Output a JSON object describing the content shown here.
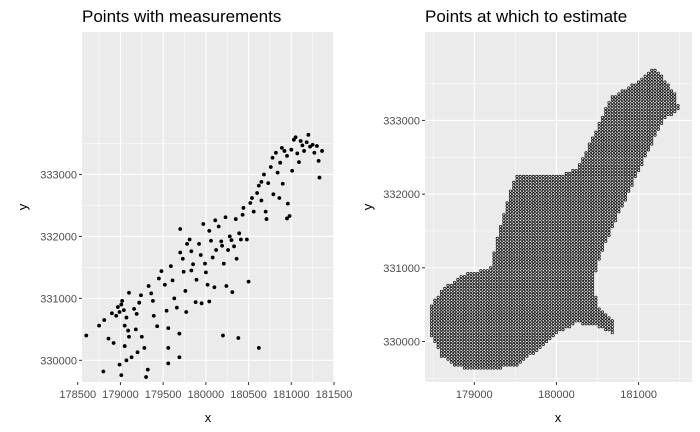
{
  "background": "#ffffff",
  "panel_color": "#ebebeb",
  "grid_color": "#ffffff",
  "point_color": "#000000",
  "chart_data": [
    {
      "type": "scatter",
      "title": "Points with measurements",
      "xlabel": "x",
      "ylabel": "y",
      "xlim": [
        178550,
        181500
      ],
      "ylim": [
        329650,
        335300
      ],
      "xticks": [
        178500,
        179000,
        179500,
        180000,
        180500,
        181000,
        181500
      ],
      "xtick_labels": [
        "178500",
        "179000",
        "179500",
        "180000",
        "180500",
        "181000",
        "181500"
      ],
      "yticks": [
        330000,
        331000,
        332000,
        333000
      ],
      "ytick_labels": [
        "330000",
        "331000",
        "332000",
        "333000"
      ],
      "grid": true,
      "legend": "none",
      "points": [
        [
          178600,
          330400
        ],
        [
          178750,
          330560
        ],
        [
          178810,
          330650
        ],
        [
          178860,
          330350
        ],
        [
          178800,
          329820
        ],
        [
          178900,
          330760
        ],
        [
          178920,
          330280
        ],
        [
          178950,
          330720
        ],
        [
          178970,
          330860
        ],
        [
          178990,
          330780
        ],
        [
          179010,
          330900
        ],
        [
          179020,
          330960
        ],
        [
          179040,
          330810
        ],
        [
          179050,
          330560
        ],
        [
          179070,
          330690
        ],
        [
          179090,
          330480
        ],
        [
          179100,
          330380
        ],
        [
          179050,
          330230
        ],
        [
          178990,
          329930
        ],
        [
          179010,
          329760
        ],
        [
          179070,
          330000
        ],
        [
          179130,
          330050
        ],
        [
          179160,
          330830
        ],
        [
          179190,
          330750
        ],
        [
          179180,
          330500
        ],
        [
          179200,
          330130
        ],
        [
          179220,
          330930
        ],
        [
          179240,
          331050
        ],
        [
          179250,
          330380
        ],
        [
          179280,
          330200
        ],
        [
          179300,
          329730
        ],
        [
          179320,
          329850
        ],
        [
          179330,
          331200
        ],
        [
          179360,
          331080
        ],
        [
          179380,
          330960
        ],
        [
          179390,
          330720
        ],
        [
          179430,
          330550
        ],
        [
          179450,
          331320
        ],
        [
          179480,
          331440
        ],
        [
          179520,
          331220
        ],
        [
          179540,
          330800
        ],
        [
          179560,
          330520
        ],
        [
          179560,
          330200
        ],
        [
          179560,
          329950
        ],
        [
          179590,
          331520
        ],
        [
          179610,
          331290
        ],
        [
          179630,
          331000
        ],
        [
          179660,
          330850
        ],
        [
          179690,
          330430
        ],
        [
          179690,
          330050
        ],
        [
          179700,
          331740
        ],
        [
          179730,
          331640
        ],
        [
          179740,
          331430
        ],
        [
          179760,
          331120
        ],
        [
          179770,
          330780
        ],
        [
          179780,
          331880
        ],
        [
          179810,
          331950
        ],
        [
          179830,
          331760
        ],
        [
          179850,
          331550
        ],
        [
          179880,
          330940
        ],
        [
          179890,
          331300
        ],
        [
          179920,
          331880
        ],
        [
          179940,
          331700
        ],
        [
          179950,
          330920
        ],
        [
          179970,
          332200
        ],
        [
          179990,
          331560
        ],
        [
          180000,
          331420
        ],
        [
          180020,
          331220
        ],
        [
          180040,
          332090
        ],
        [
          180040,
          330950
        ],
        [
          180060,
          331930
        ],
        [
          180080,
          331660
        ],
        [
          180100,
          331180
        ],
        [
          180110,
          332260
        ],
        [
          180120,
          331780
        ],
        [
          180150,
          332160
        ],
        [
          180180,
          331920
        ],
        [
          180190,
          331850
        ],
        [
          180210,
          331560
        ],
        [
          180240,
          331200
        ],
        [
          180230,
          332310
        ],
        [
          180260,
          331780
        ],
        [
          180280,
          332000
        ],
        [
          180300,
          331940
        ],
        [
          180310,
          331100
        ],
        [
          180330,
          331840
        ],
        [
          180350,
          332280
        ],
        [
          180360,
          331640
        ],
        [
          180390,
          332050
        ],
        [
          180410,
          331950
        ],
        [
          180430,
          332350
        ],
        [
          180440,
          332460
        ],
        [
          180480,
          331950
        ],
        [
          180520,
          332540
        ],
        [
          180540,
          332620
        ],
        [
          180560,
          332400
        ],
        [
          180600,
          332700
        ],
        [
          180620,
          332820
        ],
        [
          180650,
          332580
        ],
        [
          180650,
          332880
        ],
        [
          180680,
          333000
        ],
        [
          180700,
          332400
        ],
        [
          180710,
          332280
        ],
        [
          180730,
          332860
        ],
        [
          180760,
          333120
        ],
        [
          180780,
          333270
        ],
        [
          180790,
          332680
        ],
        [
          180820,
          333350
        ],
        [
          180840,
          333030
        ],
        [
          180860,
          332620
        ],
        [
          180870,
          333190
        ],
        [
          180890,
          333430
        ],
        [
          180900,
          332850
        ],
        [
          180920,
          333380
        ],
        [
          180950,
          333300
        ],
        [
          180960,
          332530
        ],
        [
          180980,
          332330
        ],
        [
          181000,
          333400
        ],
        [
          181010,
          333060
        ],
        [
          181030,
          333560
        ],
        [
          181050,
          333600
        ],
        [
          181070,
          333340
        ],
        [
          181090,
          333200
        ],
        [
          181110,
          333540
        ],
        [
          181130,
          333470
        ],
        [
          181150,
          333380
        ],
        [
          181180,
          333520
        ],
        [
          181200,
          333640
        ],
        [
          181220,
          333450
        ],
        [
          181250,
          333480
        ],
        [
          181270,
          333350
        ],
        [
          181300,
          333460
        ],
        [
          181320,
          333220
        ],
        [
          181330,
          332950
        ],
        [
          181360,
          333380
        ],
        [
          180950,
          332290
        ],
        [
          180500,
          331270
        ],
        [
          180380,
          330360
        ],
        [
          180200,
          330400
        ],
        [
          180620,
          330200
        ],
        [
          179830,
          331450
        ],
        [
          179700,
          332120
        ],
        [
          179100,
          331090
        ]
      ]
    },
    {
      "type": "scatter",
      "title": "Points at which to estimate",
      "xlabel": "x",
      "ylabel": "y",
      "xlim": [
        178400,
        181650
      ],
      "ylim": [
        329450,
        334200
      ],
      "xticks": [
        179000,
        180000,
        181000
      ],
      "xtick_labels": [
        "179000",
        "180000",
        "181000"
      ],
      "yticks": [
        330000,
        331000,
        332000,
        333000
      ],
      "ytick_labels": [
        "330000",
        "331000",
        "332000",
        "333000"
      ],
      "grid": true,
      "legend": "none",
      "grid_spacing": 40,
      "region_polygon": [
        [
          179000,
          329620
        ],
        [
          179500,
          329650
        ],
        [
          179800,
          329900
        ],
        [
          180000,
          330100
        ],
        [
          180250,
          330250
        ],
        [
          180500,
          330200
        ],
        [
          180700,
          330100
        ],
        [
          180700,
          330300
        ],
        [
          180500,
          330500
        ],
        [
          180450,
          330800
        ],
        [
          180550,
          331200
        ],
        [
          180750,
          331700
        ],
        [
          181000,
          332300
        ],
        [
          181300,
          333000
        ],
        [
          181500,
          333150
        ],
        [
          181450,
          333350
        ],
        [
          181200,
          333720
        ],
        [
          180950,
          333500
        ],
        [
          180650,
          333300
        ],
        [
          180450,
          332800
        ],
        [
          180250,
          332350
        ],
        [
          180050,
          332250
        ],
        [
          179800,
          332250
        ],
        [
          179500,
          332250
        ],
        [
          179400,
          331900
        ],
        [
          179300,
          331500
        ],
        [
          179200,
          331000
        ],
        [
          178850,
          330900
        ],
        [
          178600,
          330700
        ],
        [
          178450,
          330450
        ],
        [
          178460,
          330100
        ],
        [
          178600,
          329800
        ],
        [
          178800,
          329650
        ]
      ]
    }
  ]
}
